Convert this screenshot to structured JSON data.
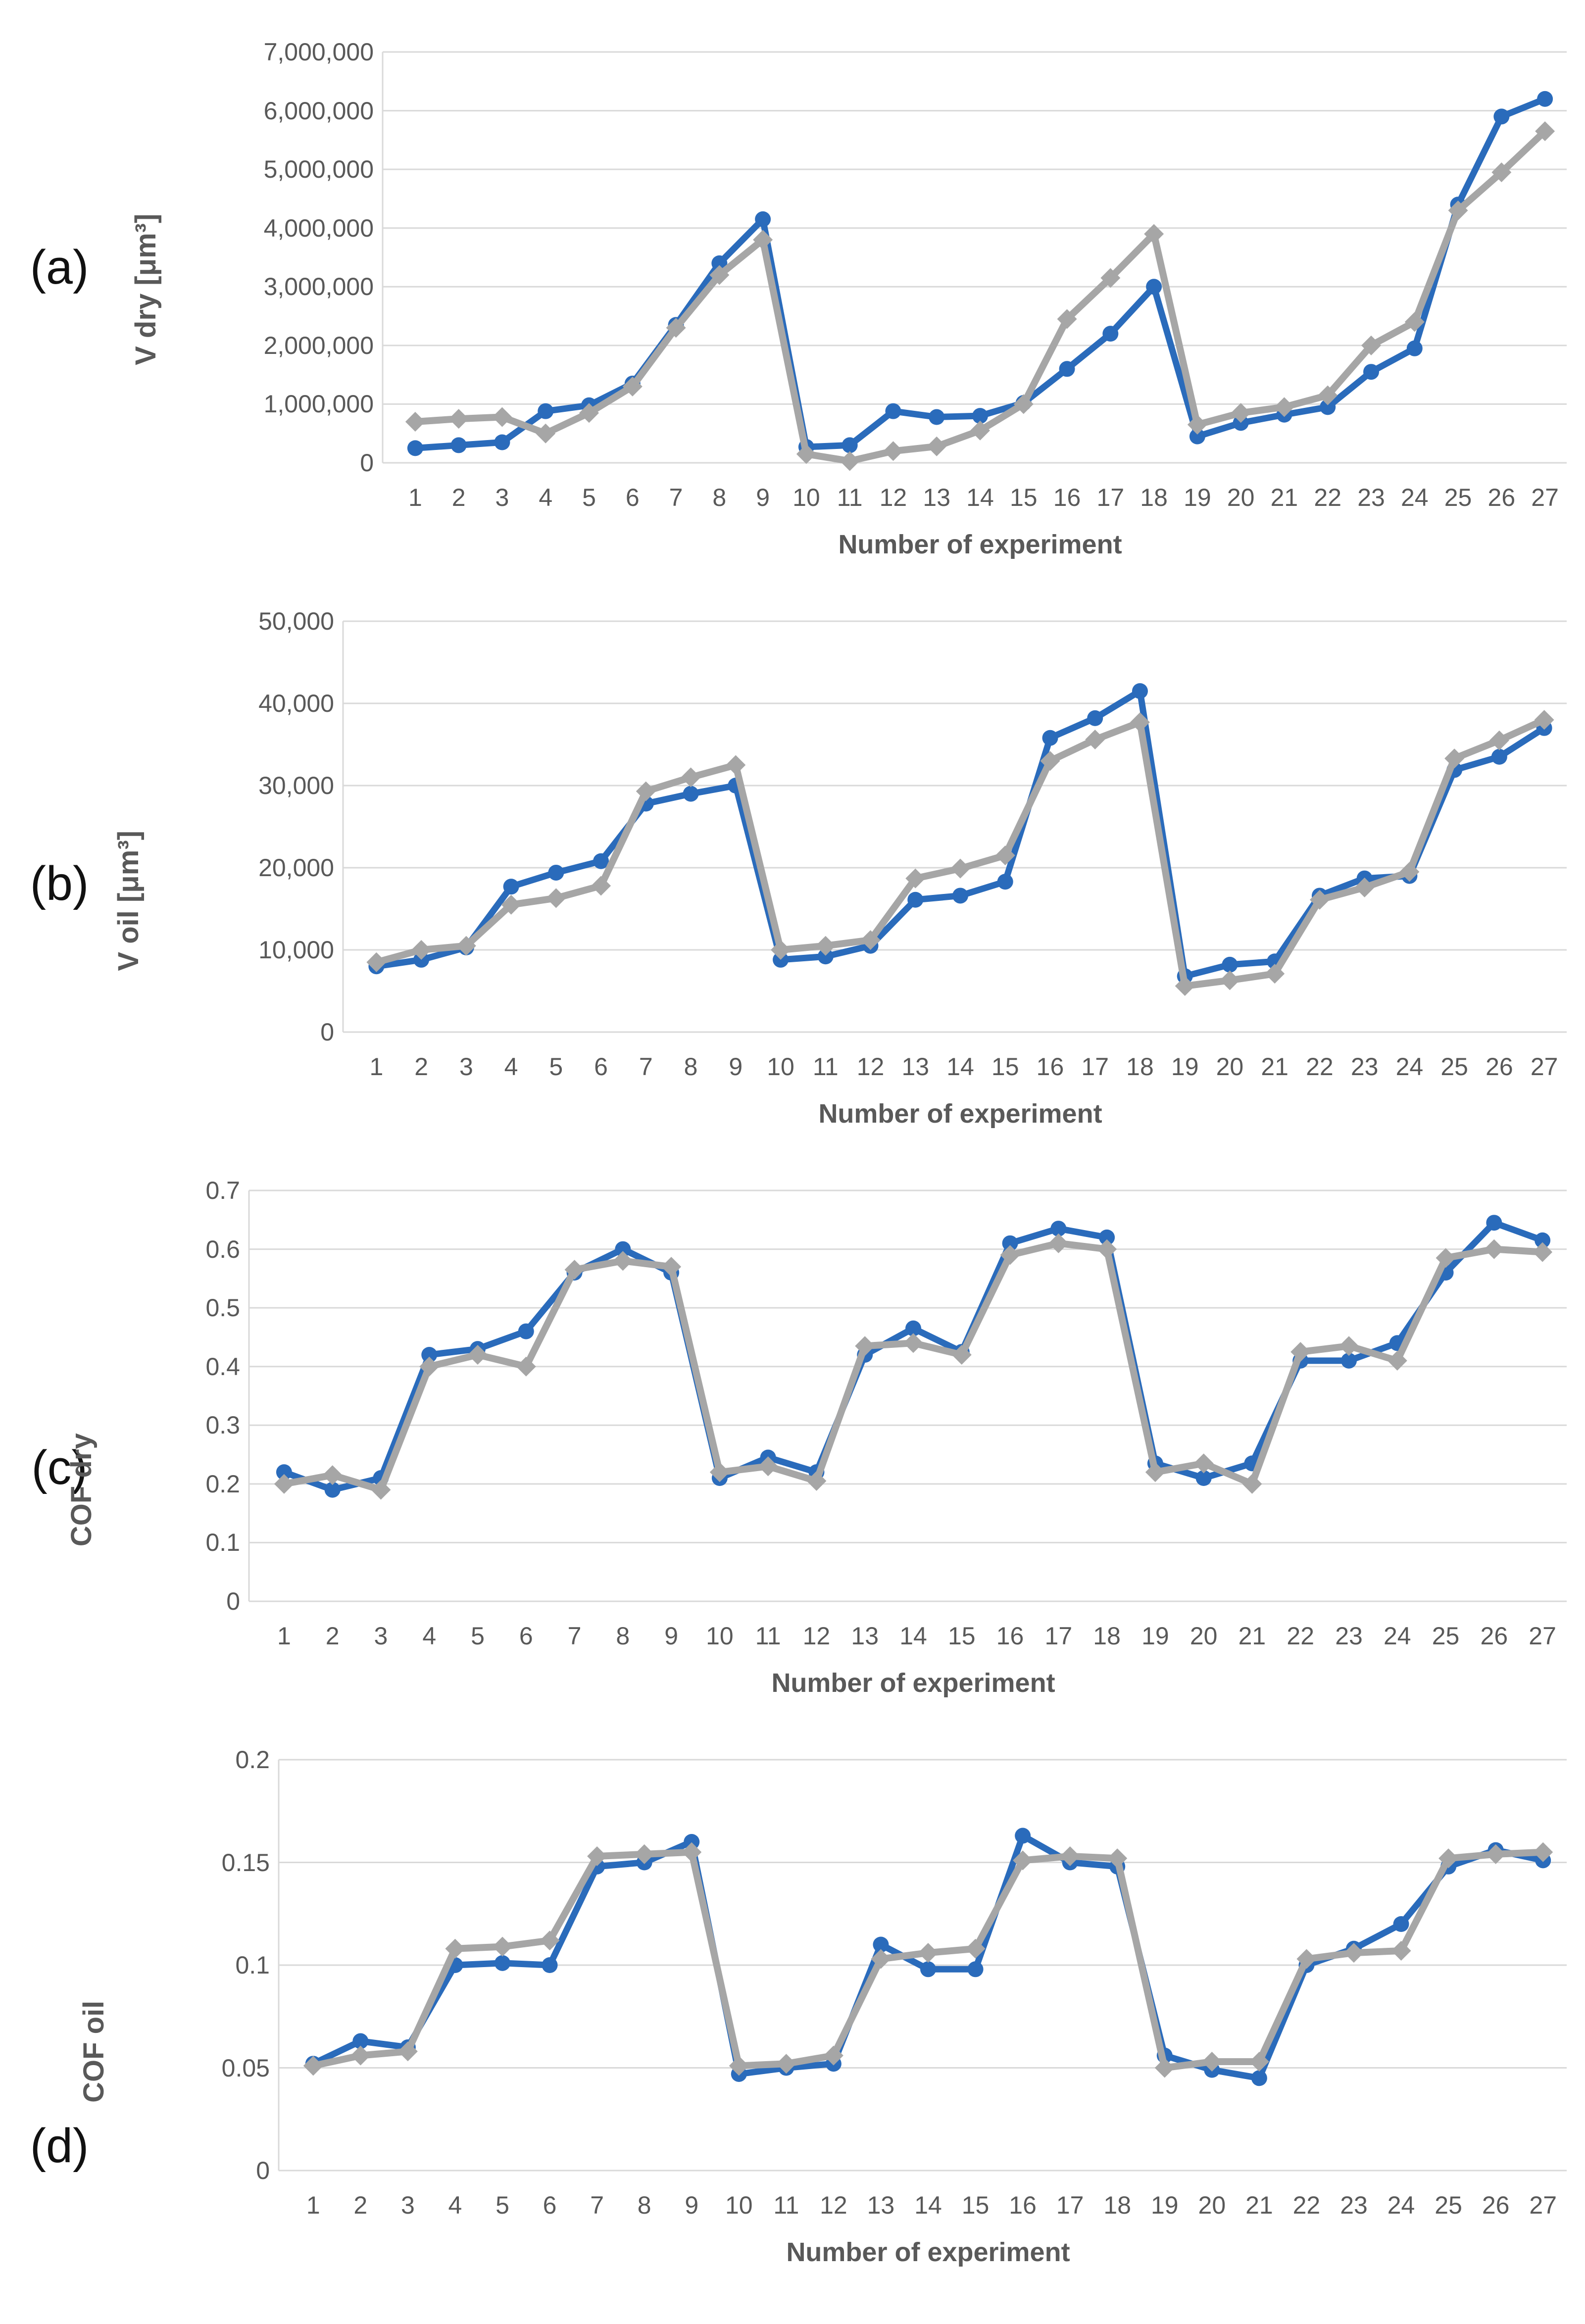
{
  "figure": {
    "description_visible_text_only": true,
    "x_axis_title": "Number of experiment"
  },
  "chart_data": [
    {
      "panel_label": "(a)",
      "type": "line",
      "title": "",
      "xlabel": "Number of experiment",
      "ylabel": "V dry [μm³]",
      "ylim": [
        0,
        7000000
      ],
      "ytick_labels": [
        "0",
        "1,000,000",
        "2,000,000",
        "3,000,000",
        "4,000,000",
        "5,000,000",
        "6,000,000",
        "7,000,000"
      ],
      "x_categories": [
        "1",
        "2",
        "3",
        "4",
        "5",
        "6",
        "7",
        "8",
        "9",
        "10",
        "11",
        "12",
        "13",
        "14",
        "15",
        "16",
        "17",
        "18",
        "19",
        "20",
        "21",
        "22",
        "23",
        "24",
        "25",
        "26",
        "27"
      ],
      "grid": true,
      "legend": "none",
      "series": [
        {
          "name": "blue",
          "color": "#2A6BBB",
          "marker": "circle",
          "values": [
            250000,
            300000,
            350000,
            880000,
            980000,
            1350000,
            2350000,
            3400000,
            4150000,
            270000,
            300000,
            880000,
            780000,
            800000,
            1020000,
            1600000,
            2200000,
            3000000,
            450000,
            680000,
            820000,
            950000,
            1550000,
            1950000,
            4400000,
            5900000,
            6200000
          ]
        },
        {
          "name": "gray",
          "color": "#A6A6A6",
          "marker": "diamond",
          "values": [
            700000,
            750000,
            780000,
            500000,
            850000,
            1300000,
            2300000,
            3200000,
            3800000,
            150000,
            30000,
            200000,
            280000,
            550000,
            1000000,
            2450000,
            3150000,
            3900000,
            650000,
            850000,
            950000,
            1150000,
            2000000,
            2400000,
            4300000,
            4950000,
            5650000
          ]
        }
      ]
    },
    {
      "panel_label": "(b)",
      "type": "line",
      "title": "",
      "xlabel": "Number of experiment",
      "ylabel": "V oil [μm³]",
      "ylim": [
        0,
        50000
      ],
      "ytick_labels": [
        "0",
        "10,000",
        "20,000",
        "30,000",
        "40,000",
        "50,000"
      ],
      "x_categories": [
        "1",
        "2",
        "3",
        "4",
        "5",
        "6",
        "7",
        "8",
        "9",
        "10",
        "11",
        "12",
        "13",
        "14",
        "15",
        "16",
        "17",
        "18",
        "19",
        "20",
        "21",
        "22",
        "23",
        "24",
        "25",
        "26",
        "27"
      ],
      "grid": true,
      "legend": "none",
      "series": [
        {
          "name": "blue",
          "color": "#2A6BBB",
          "marker": "circle",
          "values": [
            8000,
            8800,
            10300,
            17700,
            19400,
            20800,
            27800,
            29000,
            30000,
            8800,
            9200,
            10500,
            16100,
            16600,
            18300,
            35800,
            38200,
            41500,
            6800,
            8200,
            8600,
            16600,
            18700,
            19000,
            31900,
            33500,
            37000
          ]
        },
        {
          "name": "gray",
          "color": "#A6A6A6",
          "marker": "diamond",
          "values": [
            8500,
            10000,
            10500,
            15500,
            16300,
            17800,
            29300,
            31000,
            32500,
            10000,
            10500,
            11200,
            18700,
            19900,
            21500,
            33000,
            35600,
            37700,
            5600,
            6300,
            7100,
            16100,
            17600,
            19500,
            33300,
            35500,
            38000
          ]
        }
      ]
    },
    {
      "panel_label": "(c)",
      "type": "line",
      "title": "",
      "xlabel": "Number of experiment",
      "ylabel": "COF dry",
      "ylim": [
        0,
        0.7
      ],
      "ytick_labels": [
        "0",
        "0.1",
        "0.2",
        "0.3",
        "0.4",
        "0.5",
        "0.6",
        "0.7"
      ],
      "x_categories": [
        "1",
        "2",
        "3",
        "4",
        "5",
        "6",
        "7",
        "8",
        "9",
        "10",
        "11",
        "12",
        "13",
        "14",
        "15",
        "16",
        "17",
        "18",
        "19",
        "20",
        "21",
        "22",
        "23",
        "24",
        "25",
        "26",
        "27"
      ],
      "grid": true,
      "legend": "none",
      "series": [
        {
          "name": "blue",
          "color": "#2A6BBB",
          "marker": "circle",
          "values": [
            0.22,
            0.19,
            0.21,
            0.42,
            0.43,
            0.46,
            0.56,
            0.6,
            0.56,
            0.21,
            0.245,
            0.22,
            0.42,
            0.465,
            0.425,
            0.61,
            0.635,
            0.62,
            0.235,
            0.21,
            0.235,
            0.41,
            0.41,
            0.44,
            0.56,
            0.645,
            0.615
          ]
        },
        {
          "name": "gray",
          "color": "#A6A6A6",
          "marker": "diamond",
          "values": [
            0.2,
            0.215,
            0.19,
            0.4,
            0.42,
            0.4,
            0.565,
            0.58,
            0.57,
            0.22,
            0.23,
            0.205,
            0.435,
            0.44,
            0.42,
            0.59,
            0.61,
            0.6,
            0.22,
            0.235,
            0.2,
            0.425,
            0.435,
            0.41,
            0.585,
            0.6,
            0.595
          ]
        }
      ]
    },
    {
      "panel_label": "(d)",
      "type": "line",
      "title": "",
      "xlabel": "Number of experiment",
      "ylabel": "COF oil",
      "ylim": [
        0,
        0.2
      ],
      "ytick_labels": [
        "0",
        "0.05",
        "0.1",
        "0.15",
        "0.2"
      ],
      "x_categories": [
        "1",
        "2",
        "3",
        "4",
        "5",
        "6",
        "7",
        "8",
        "9",
        "10",
        "11",
        "12",
        "13",
        "14",
        "15",
        "16",
        "17",
        "18",
        "19",
        "20",
        "21",
        "22",
        "23",
        "24",
        "25",
        "26",
        "27"
      ],
      "grid": true,
      "legend": "none",
      "series": [
        {
          "name": "blue",
          "color": "#2A6BBB",
          "marker": "circle",
          "values": [
            0.052,
            0.063,
            0.06,
            0.1,
            0.101,
            0.1,
            0.148,
            0.15,
            0.16,
            0.047,
            0.05,
            0.052,
            0.11,
            0.098,
            0.098,
            0.163,
            0.15,
            0.148,
            0.056,
            0.049,
            0.045,
            0.1,
            0.108,
            0.12,
            0.148,
            0.156,
            0.151
          ]
        },
        {
          "name": "gray",
          "color": "#A6A6A6",
          "marker": "diamond",
          "values": [
            0.051,
            0.056,
            0.058,
            0.108,
            0.109,
            0.112,
            0.153,
            0.154,
            0.155,
            0.051,
            0.052,
            0.056,
            0.103,
            0.106,
            0.108,
            0.151,
            0.153,
            0.152,
            0.05,
            0.053,
            0.053,
            0.103,
            0.106,
            0.107,
            0.152,
            0.154,
            0.155
          ]
        }
      ]
    }
  ]
}
